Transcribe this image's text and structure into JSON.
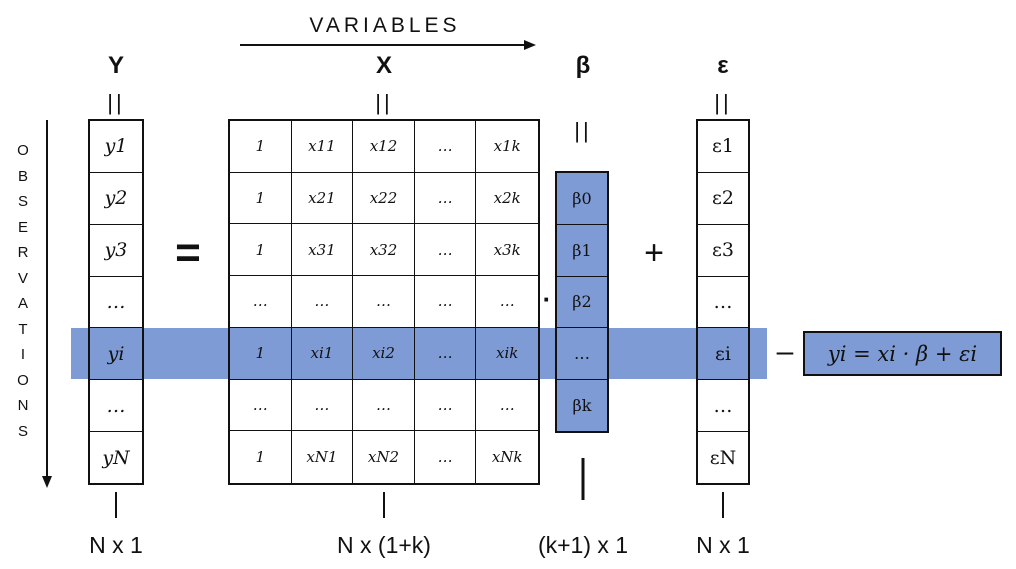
{
  "variables_label": "VARIABLES",
  "observations_label": "OBSERVATIONS",
  "headers": {
    "y": "Y",
    "x": "X",
    "beta": "β",
    "eps": "ε"
  },
  "equal_bars": "||",
  "equals_sign": "=",
  "plus_sign": "+",
  "dot_operator": "·",
  "dash": "–",
  "y_cells": [
    "y1",
    "y2",
    "y3",
    "…",
    "yi",
    "…",
    "yN"
  ],
  "x_rows": [
    [
      "1",
      "x11",
      "x12",
      "…",
      "x1k"
    ],
    [
      "1",
      "x21",
      "x22",
      "…",
      "x2k"
    ],
    [
      "1",
      "x31",
      "x32",
      "…",
      "x3k"
    ],
    [
      "…",
      "…",
      "…",
      "…",
      "…"
    ],
    [
      "1",
      "xi1",
      "xi2",
      "…",
      "xik"
    ],
    [
      "…",
      "…",
      "…",
      "…",
      "…"
    ],
    [
      "1",
      "xN1",
      "xN2",
      "…",
      "xNk"
    ]
  ],
  "beta_cells": [
    "β0",
    "β1",
    "β2",
    "…",
    "βk"
  ],
  "eps_cells": [
    "ε1",
    "ε2",
    "ε3",
    "…",
    "εi",
    "…",
    "εN"
  ],
  "formula": "yi = xi · β + εi",
  "dimensions": {
    "y": "N x 1",
    "x": "N x (1+k)",
    "beta": "(k+1) x 1",
    "eps": "N x 1"
  },
  "colors": {
    "highlight": "#7e9bd6",
    "line": "#111111"
  }
}
